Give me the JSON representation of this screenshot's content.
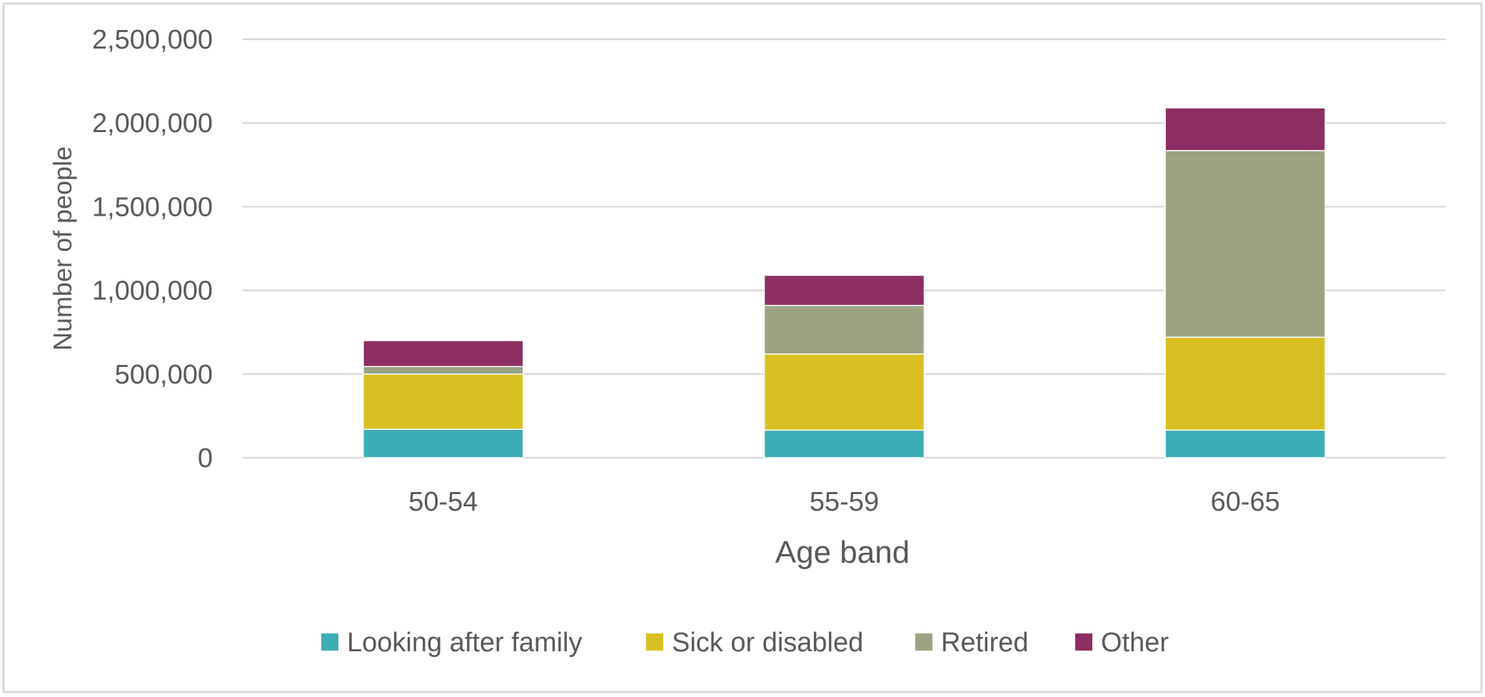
{
  "chart_data": {
    "type": "bar",
    "stacked": true,
    "title": "",
    "xlabel": "Age band",
    "ylabel": "Number of people",
    "categories": [
      "50-54",
      "55-59",
      "60-65"
    ],
    "ylim": [
      0,
      2500000
    ],
    "yticks": [
      0,
      500000,
      1000000,
      1500000,
      2000000,
      2500000
    ],
    "ytick_labels": [
      "0",
      "500,000",
      "1,000,000",
      "1,500,000",
      "2,000,000",
      "2,500,000"
    ],
    "grid": true,
    "legend_position": "bottom",
    "series": [
      {
        "name": "Looking after family",
        "color": "#3DADB6",
        "values": [
          170000,
          165000,
          165000
        ]
      },
      {
        "name": "Sick or disabled",
        "color": "#D9C022",
        "values": [
          330000,
          455000,
          555000
        ]
      },
      {
        "name": "Retired",
        "color": "#9BA384",
        "values": [
          45000,
          290000,
          1115000
        ]
      },
      {
        "name": "Other",
        "color": "#8D2E62",
        "values": [
          155000,
          180000,
          255000
        ]
      }
    ]
  }
}
